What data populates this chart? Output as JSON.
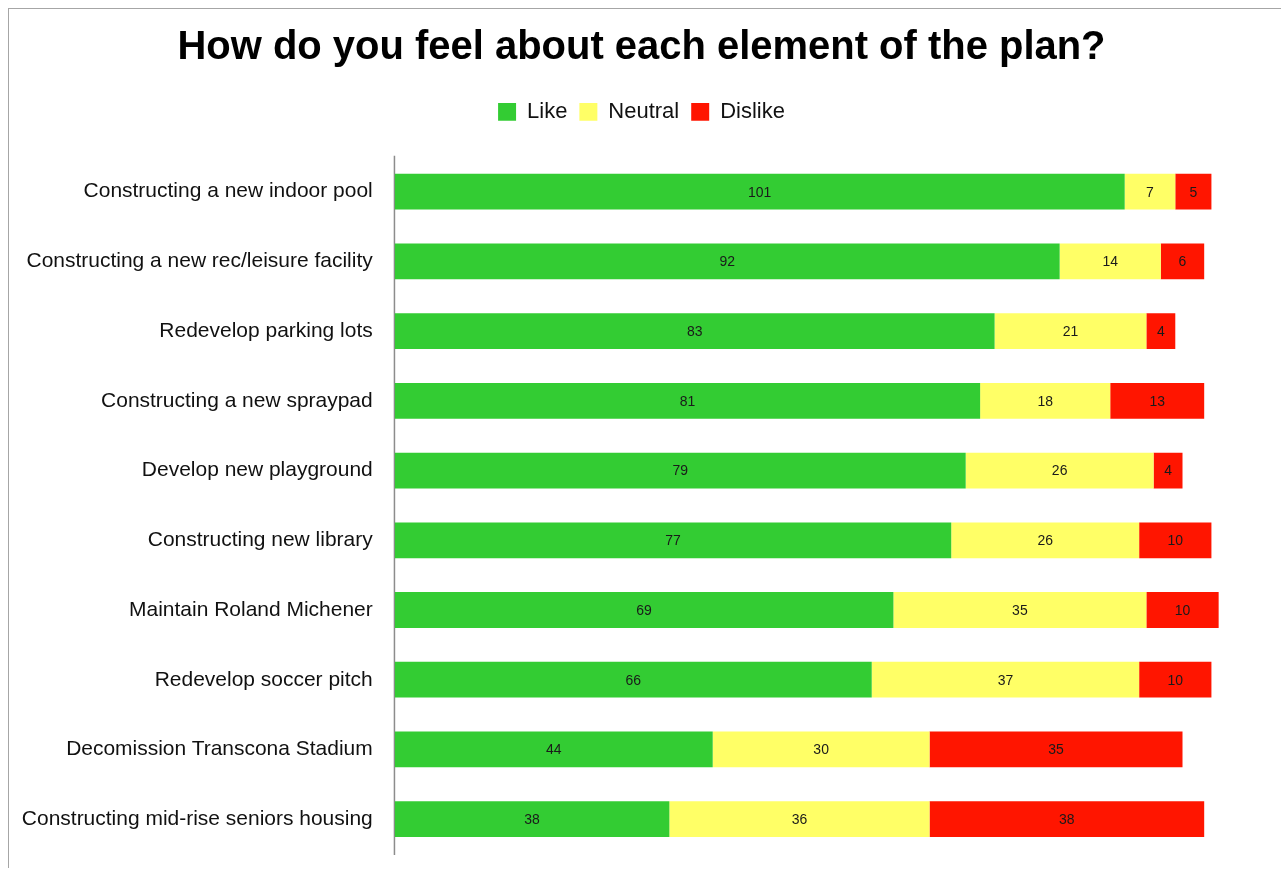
{
  "chart_data": {
    "type": "bar",
    "title": "How do you feel about each element of the plan?",
    "orientation": "horizontal",
    "stacked": true,
    "legend": "top",
    "data_labels": true,
    "tick_labels": "y",
    "categories": [
      "Constructing a new indoor pool",
      "Constructing a new rec/leisure facility",
      "Redevelop parking lots",
      "Constructing a new spraypad",
      "Develop new playground",
      "Constructing new library",
      "Maintain Roland Michener",
      "Redevelop soccer pitch",
      "Decomission Transcona Stadium",
      "Constructing mid-rise seniors housing"
    ],
    "series": [
      {
        "name": "Like",
        "color": "#33cc33",
        "values": [
          101,
          92,
          83,
          81,
          79,
          77,
          69,
          66,
          44,
          38
        ]
      },
      {
        "name": "Neutral",
        "color": "#ffff66",
        "values": [
          7,
          14,
          21,
          18,
          26,
          26,
          35,
          37,
          30,
          36
        ]
      },
      {
        "name": "Dislike",
        "color": "#ff1500",
        "values": [
          5,
          6,
          4,
          13,
          4,
          10,
          10,
          10,
          35,
          38
        ]
      }
    ]
  }
}
